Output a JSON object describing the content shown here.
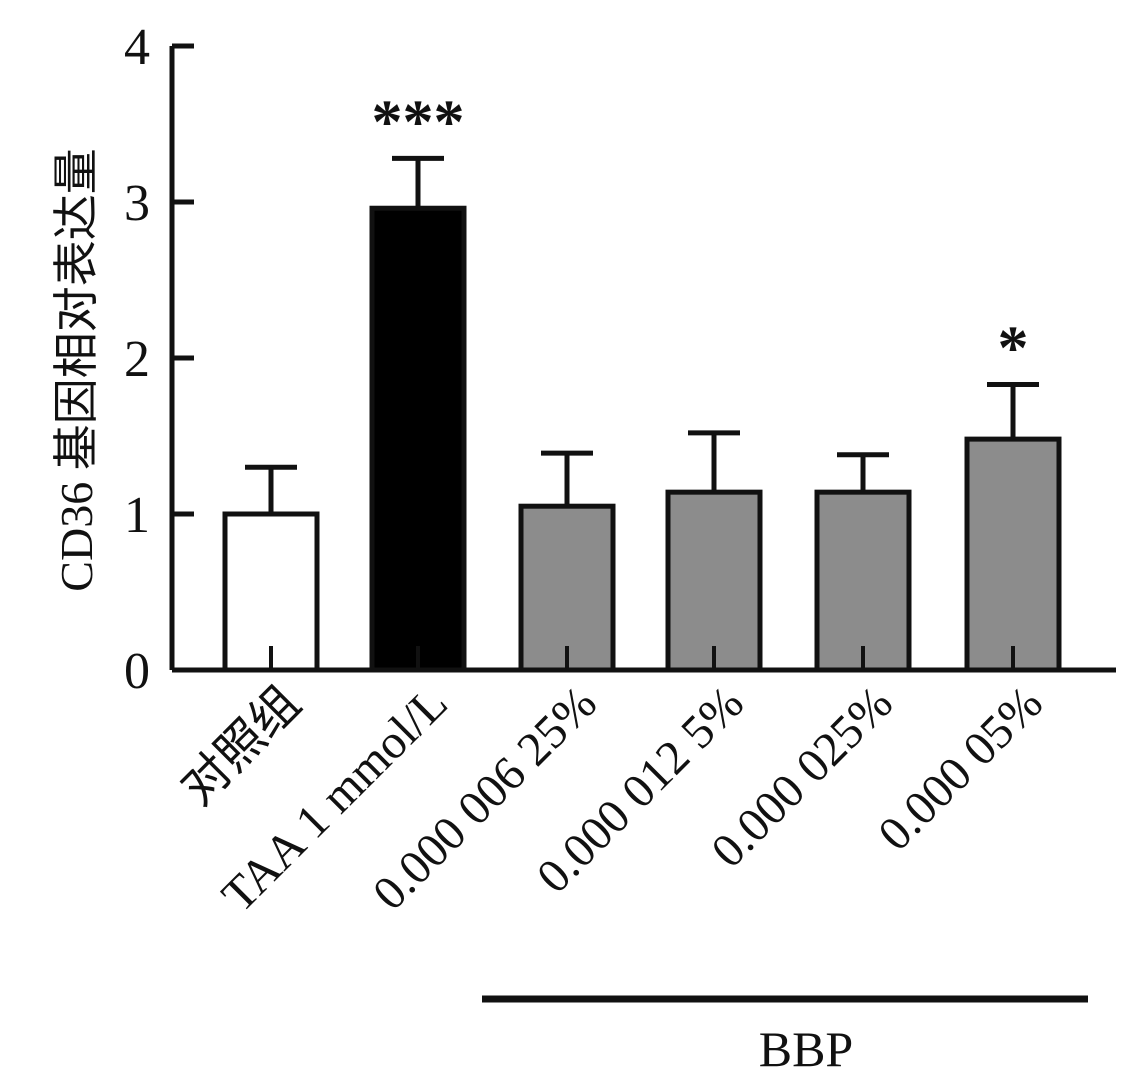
{
  "chart_data": {
    "type": "bar",
    "ylabel": "CD36 基因相对表达量",
    "ylim": [
      0,
      4
    ],
    "yticks": [
      0,
      1,
      2,
      3,
      4
    ],
    "categories": [
      "对照组",
      "TAA 1 mmol/L",
      "0.000 006 25%",
      "0.000 012 5%",
      "0.000 025%",
      "0.000 05%"
    ],
    "values": [
      1.0,
      2.96,
      1.05,
      1.14,
      1.14,
      1.48
    ],
    "errors": [
      0.3,
      0.32,
      0.34,
      0.38,
      0.24,
      0.35
    ],
    "significance": [
      "",
      "***",
      "",
      "",
      "",
      "*"
    ],
    "bar_colors": [
      "#ffffff",
      "#000000",
      "#8c8c8c",
      "#8c8c8c",
      "#8c8c8c",
      "#8c8c8c"
    ],
    "group_label": "BBP",
    "grid": false,
    "legend": "none"
  }
}
